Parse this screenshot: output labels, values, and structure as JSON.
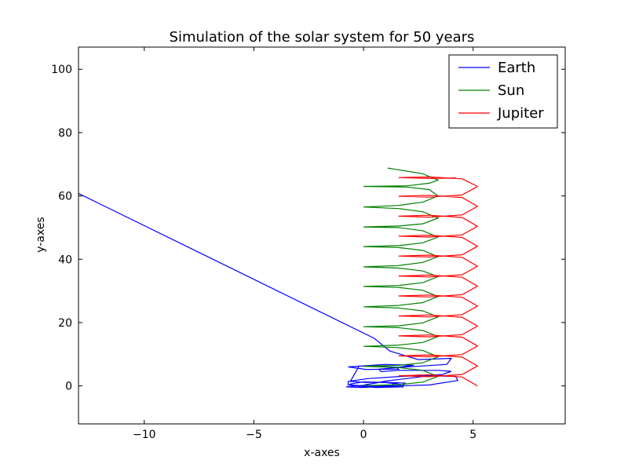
{
  "chart_data": {
    "type": "line",
    "title": "Simulation of the solar system for 50 years",
    "xlabel": "x-axes",
    "ylabel": "y-axes",
    "xlim": [
      -13,
      9.2
    ],
    "ylim": [
      -12,
      107
    ],
    "xticks": [
      -10,
      -5,
      0,
      5
    ],
    "yticks": [
      0,
      20,
      40,
      60,
      80,
      100
    ],
    "xtick_labels": [
      "−10",
      "−5",
      "0",
      "5"
    ],
    "ytick_labels": [
      "0",
      "20",
      "40",
      "60",
      "80",
      "100"
    ],
    "grid": false,
    "legend": {
      "position": "top-right",
      "entries": [
        "Earth",
        "Sun",
        "Jupiter"
      ]
    },
    "series": [
      {
        "name": "Earth",
        "color": "#0000ff",
        "points": [
          [
            -13,
            60.8
          ],
          [
            0.5,
            15
          ],
          [
            1.2,
            11
          ],
          [
            2.5,
            8.3
          ],
          [
            4.0,
            8.7
          ],
          [
            3.8,
            6.8
          ],
          [
            1.6,
            5.8
          ],
          [
            0.7,
            5.3
          ],
          [
            0.8,
            4.5
          ],
          [
            1.6,
            4.9
          ],
          [
            3.4,
            4.9
          ],
          [
            4.0,
            4.6
          ],
          [
            3.6,
            3.6
          ],
          [
            1.7,
            3.0
          ],
          [
            0.2,
            2.3
          ],
          [
            -0.7,
            1.4
          ],
          [
            -0.7,
            0.3
          ],
          [
            0.6,
            -0.2
          ],
          [
            3.0,
            0.3
          ],
          [
            4.3,
            1.7
          ],
          [
            4.2,
            3.0
          ],
          [
            3.0,
            3.2
          ],
          [
            1.0,
            1.5
          ],
          [
            0.0,
            0.2
          ],
          [
            -0.8,
            -0.3
          ],
          [
            -0.1,
            -0.5
          ],
          [
            1.8,
            0.1
          ],
          [
            1.9,
            0.9
          ],
          [
            0.8,
            1.2
          ],
          [
            0.1,
            0.4
          ],
          [
            0.3,
            -0.2
          ],
          [
            1.4,
            0.1
          ],
          [
            1.3,
            1.0
          ],
          [
            0.0,
            1.3
          ],
          [
            -0.6,
            0.6
          ],
          [
            -0.4,
            0.0
          ],
          [
            0.6,
            -0.5
          ],
          [
            1.8,
            -0.3
          ],
          [
            1.6,
            0.6
          ],
          [
            0.8,
            1.2
          ],
          [
            0.1,
            1.1
          ],
          [
            -0.6,
            1.4
          ],
          [
            -0.2,
            6.3
          ],
          [
            1.6,
            5.9
          ],
          [
            2.3,
            6.5
          ],
          [
            1.0,
            6.8
          ],
          [
            -0.7,
            6.0
          ],
          [
            0.1,
            5.2
          ],
          [
            1.6,
            5.3
          ],
          [
            1.5,
            5.9
          ],
          [
            0.3,
            6.3
          ]
        ]
      },
      {
        "name": "Sun",
        "color": "#008000",
        "points": [
          [
            1.1,
            68.8
          ],
          [
            2.7,
            67
          ],
          [
            3.4,
            65
          ],
          [
            3.0,
            64
          ],
          [
            2.0,
            63.2
          ],
          [
            0,
            63
          ],
          [
            2.0,
            62.8
          ],
          [
            3.0,
            62
          ],
          [
            3.4,
            60
          ],
          [
            2.7,
            58
          ],
          [
            1.6,
            57
          ],
          [
            0,
            56.5
          ],
          [
            1.6,
            56
          ],
          [
            2.7,
            55
          ],
          [
            3.4,
            53
          ],
          [
            2.7,
            51.2
          ],
          [
            1.6,
            50.5
          ],
          [
            0,
            50.2
          ],
          [
            1.6,
            50
          ],
          [
            2.7,
            49
          ],
          [
            3.4,
            47
          ],
          [
            2.7,
            45.2
          ],
          [
            1.6,
            44.3
          ],
          [
            0,
            44
          ],
          [
            1.6,
            43.7
          ],
          [
            2.7,
            42.8
          ],
          [
            3.4,
            40.8
          ],
          [
            2.7,
            39
          ],
          [
            1.6,
            38
          ],
          [
            0,
            37.6
          ],
          [
            1.6,
            37.2
          ],
          [
            2.7,
            36.3
          ],
          [
            3.4,
            34.5
          ],
          [
            2.7,
            32.6
          ],
          [
            1.6,
            31.7
          ],
          [
            0,
            31.4
          ],
          [
            1.6,
            31.1
          ],
          [
            2.7,
            30.2
          ],
          [
            3.4,
            28.2
          ],
          [
            2.7,
            26.3
          ],
          [
            1.6,
            25.4
          ],
          [
            0,
            25.0
          ],
          [
            1.6,
            24.6
          ],
          [
            2.7,
            23.7
          ],
          [
            3.4,
            21.8
          ],
          [
            2.7,
            19.9
          ],
          [
            1.6,
            19.0
          ],
          [
            0,
            18.7
          ],
          [
            1.6,
            18.4
          ],
          [
            2.7,
            17.5
          ],
          [
            3.4,
            15.6
          ],
          [
            2.7,
            13.7
          ],
          [
            1.6,
            12.9
          ],
          [
            0,
            12.5
          ],
          [
            1.6,
            12.1
          ],
          [
            2.7,
            11.2
          ],
          [
            3.4,
            9.2
          ],
          [
            2.7,
            7.3
          ],
          [
            1.6,
            6.5
          ],
          [
            0,
            6.2
          ],
          [
            1.6,
            5.8
          ],
          [
            2.7,
            4.9
          ],
          [
            3.4,
            3.0
          ],
          [
            2.7,
            1.2
          ],
          [
            1.6,
            0.4
          ],
          [
            0,
            0.1
          ]
        ]
      },
      {
        "name": "Jupiter",
        "color": "#ff0000",
        "points": [
          [
            5.2,
            0
          ],
          [
            4.5,
            2.8
          ],
          [
            3.0,
            3.5
          ],
          [
            1.6,
            3.2
          ],
          [
            3.0,
            2.9
          ],
          [
            4.5,
            3.6
          ],
          [
            5.2,
            6.3
          ],
          [
            4.5,
            9.1
          ],
          [
            3.0,
            9.8
          ],
          [
            1.6,
            9.5
          ],
          [
            3.0,
            9.2
          ],
          [
            4.5,
            9.9
          ],
          [
            5.2,
            12.6
          ],
          [
            4.5,
            15.4
          ],
          [
            3.0,
            16.1
          ],
          [
            1.6,
            15.8
          ],
          [
            3.0,
            15.5
          ],
          [
            4.5,
            16.2
          ],
          [
            5.2,
            18.9
          ],
          [
            4.5,
            21.7
          ],
          [
            3.0,
            22.4
          ],
          [
            1.6,
            22.1
          ],
          [
            3.0,
            21.8
          ],
          [
            4.5,
            22.5
          ],
          [
            5.2,
            25.2
          ],
          [
            4.5,
            28.0
          ],
          [
            3.0,
            28.7
          ],
          [
            1.6,
            28.4
          ],
          [
            3.0,
            28.1
          ],
          [
            4.5,
            28.8
          ],
          [
            5.2,
            31.5
          ],
          [
            4.5,
            34.3
          ],
          [
            3.0,
            35.0
          ],
          [
            1.6,
            34.7
          ],
          [
            3.0,
            34.4
          ],
          [
            4.5,
            35.1
          ],
          [
            5.2,
            37.8
          ],
          [
            4.5,
            40.6
          ],
          [
            3.0,
            41.3
          ],
          [
            1.6,
            41.0
          ],
          [
            3.0,
            40.7
          ],
          [
            4.5,
            41.4
          ],
          [
            5.2,
            44.1
          ],
          [
            4.5,
            46.9
          ],
          [
            3.0,
            47.6
          ],
          [
            1.6,
            47.3
          ],
          [
            3.0,
            47.0
          ],
          [
            4.5,
            47.7
          ],
          [
            5.2,
            50.4
          ],
          [
            4.5,
            53.2
          ],
          [
            3.0,
            53.9
          ],
          [
            1.6,
            53.6
          ],
          [
            3.0,
            53.3
          ],
          [
            4.5,
            54.0
          ],
          [
            5.2,
            56.7
          ],
          [
            4.5,
            59.5
          ],
          [
            3.0,
            60.2
          ],
          [
            1.6,
            59.9
          ],
          [
            3.0,
            59.6
          ],
          [
            4.5,
            60.3
          ],
          [
            5.2,
            63.0
          ],
          [
            4.5,
            65.4
          ],
          [
            3.0,
            66.0
          ],
          [
            1.6,
            65.8
          ],
          [
            3.0,
            65.5
          ],
          [
            4.2,
            65.7
          ]
        ]
      }
    ]
  }
}
